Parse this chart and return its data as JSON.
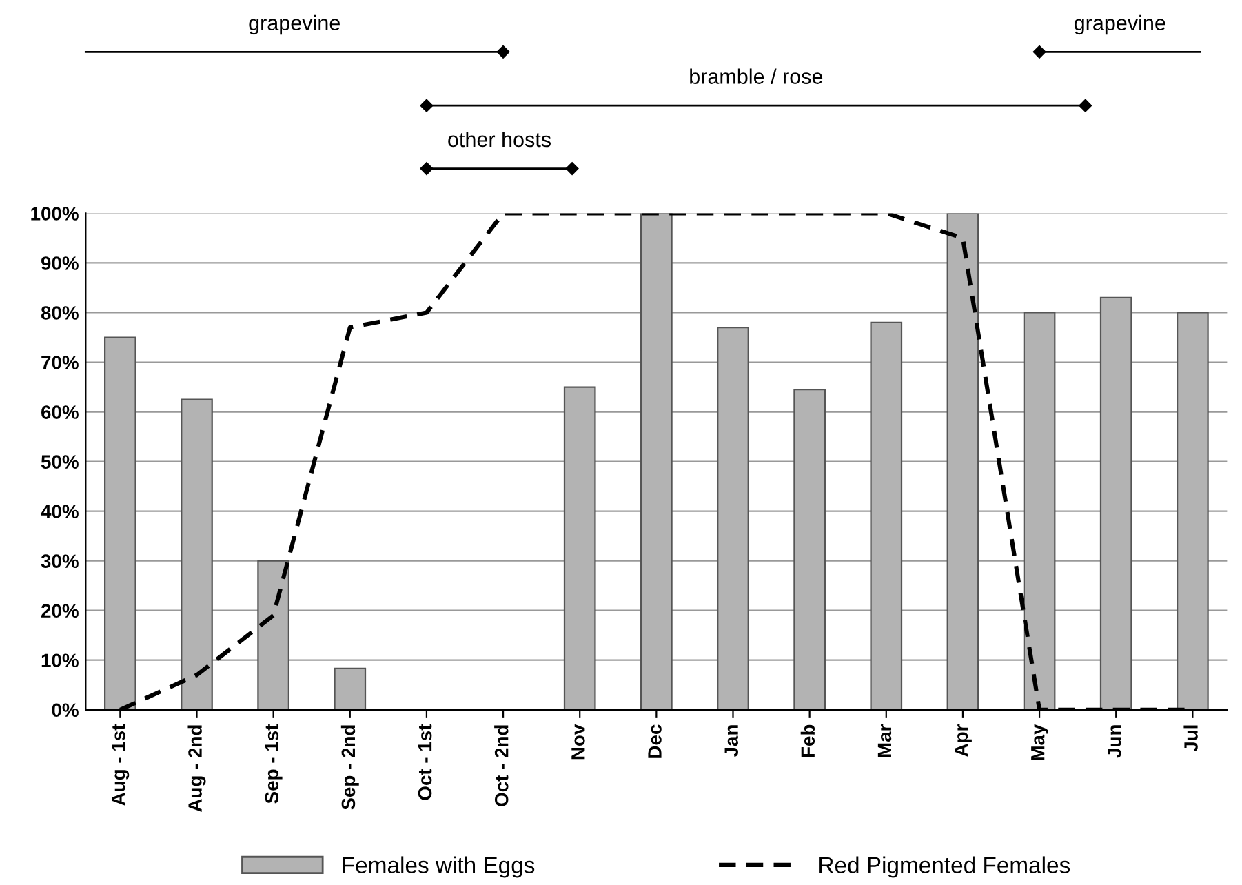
{
  "chart_data": {
    "type": "bar",
    "categories": [
      "Aug - 1st",
      "Aug - 2nd",
      "Sep - 1st",
      "Sep - 2nd",
      "Oct - 1st",
      "Oct - 2nd",
      "Nov",
      "Dec",
      "Jan",
      "Feb",
      "Mar",
      "Apr",
      "May",
      "Jun",
      "Jul"
    ],
    "series": [
      {
        "name": "Females with Eggs",
        "color": "#b3b3b3",
        "values": [
          75,
          62.5,
          30,
          8.3,
          0,
          0,
          65,
          100,
          77,
          64.5,
          78,
          100,
          80,
          83,
          80
        ]
      },
      {
        "name": "Red Pigmented Females",
        "type": "line",
        "color": "#000000",
        "line_style": "dashed",
        "values": [
          0,
          7,
          19,
          77,
          80,
          100,
          100,
          100,
          100,
          100,
          100,
          95,
          0,
          0,
          0
        ]
      }
    ],
    "ylim": [
      0,
      100
    ],
    "yticks": [
      {
        "value": 0,
        "label": "0%"
      },
      {
        "value": 10,
        "label": "10%"
      },
      {
        "value": 20,
        "label": "20%"
      },
      {
        "value": 30,
        "label": "30%"
      },
      {
        "value": 40,
        "label": "40%"
      },
      {
        "value": 50,
        "label": "50%"
      },
      {
        "value": 60,
        "label": "60%"
      },
      {
        "value": 70,
        "label": "70%"
      },
      {
        "value": 80,
        "label": "80%"
      },
      {
        "value": 90,
        "label": "90%"
      },
      {
        "value": 100,
        "label": "100%"
      }
    ],
    "grid": "y",
    "legend": "bottom",
    "annotations": [
      "grapevine",
      "bramble / rose",
      "other hosts",
      "grapevine"
    ]
  }
}
